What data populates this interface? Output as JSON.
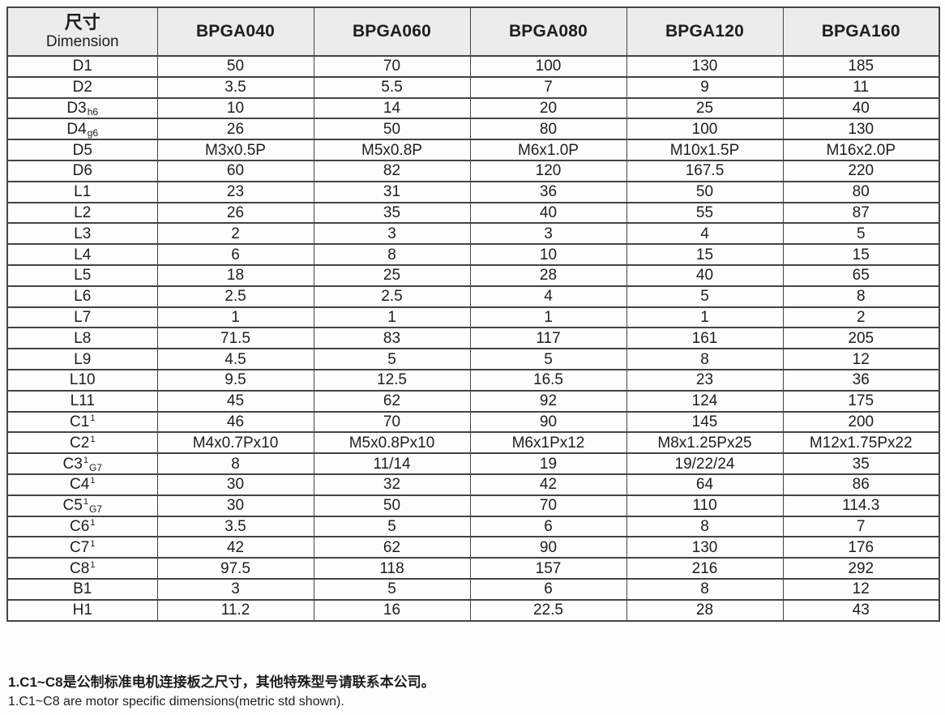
{
  "colors": {
    "line": "#444444",
    "header_bg": "#ececec",
    "text": "#1e1e1e",
    "page_bg": "#fdfdfd"
  },
  "table": {
    "header": {
      "col1_zh": "尺寸",
      "col1_en": "Dimension"
    },
    "columns": [
      "BPGA040",
      "BPGA060",
      "BPGA080",
      "BPGA120",
      "BPGA160"
    ],
    "rows": [
      {
        "label": "D1",
        "values": [
          "50",
          "70",
          "100",
          "130",
          "185"
        ]
      },
      {
        "label": "D2",
        "values": [
          "3.5",
          "5.5",
          "7",
          "9",
          "11"
        ]
      },
      {
        "label": "D3",
        "sub": "h6",
        "values": [
          "10",
          "14",
          "20",
          "25",
          "40"
        ]
      },
      {
        "label": "D4",
        "sub": "g6",
        "values": [
          "26",
          "50",
          "80",
          "100",
          "130"
        ]
      },
      {
        "label": "D5",
        "values": [
          "M3x0.5P",
          "M5x0.8P",
          "M6x1.0P",
          "M10x1.5P",
          "M16x2.0P"
        ]
      },
      {
        "label": "D6",
        "values": [
          "60",
          "82",
          "120",
          "167.5",
          "220"
        ]
      },
      {
        "label": "L1",
        "values": [
          "23",
          "31",
          "36",
          "50",
          "80"
        ]
      },
      {
        "label": "L2",
        "values": [
          "26",
          "35",
          "40",
          "55",
          "87"
        ]
      },
      {
        "label": "L3",
        "values": [
          "2",
          "3",
          "3",
          "4",
          "5"
        ]
      },
      {
        "label": "L4",
        "values": [
          "6",
          "8",
          "10",
          "15",
          "15"
        ]
      },
      {
        "label": "L5",
        "values": [
          "18",
          "25",
          "28",
          "40",
          "65"
        ]
      },
      {
        "label": "L6",
        "values": [
          "2.5",
          "2.5",
          "4",
          "5",
          "8"
        ]
      },
      {
        "label": "L7",
        "values": [
          "1",
          "1",
          "1",
          "1",
          "2"
        ]
      },
      {
        "label": "L8",
        "values": [
          "71.5",
          "83",
          "117",
          "161",
          "205"
        ]
      },
      {
        "label": "L9",
        "values": [
          "4.5",
          "5",
          "5",
          "8",
          "12"
        ]
      },
      {
        "label": "L10",
        "values": [
          "9.5",
          "12.5",
          "16.5",
          "23",
          "36"
        ]
      },
      {
        "label": "L11",
        "values": [
          "45",
          "62",
          "92",
          "124",
          "175"
        ]
      },
      {
        "label": "C1",
        "sup": "1",
        "values": [
          "46",
          "70",
          "90",
          "145",
          "200"
        ]
      },
      {
        "label": "C2",
        "sup": "1",
        "values": [
          "M4x0.7Px10",
          "M5x0.8Px10",
          "M6x1Px12",
          "M8x1.25Px25",
          "M12x1.75Px22"
        ]
      },
      {
        "label": "C3",
        "sup": "1",
        "sub": "G7",
        "values": [
          "8",
          "11/14",
          "19",
          "19/22/24",
          "35"
        ]
      },
      {
        "label": "C4",
        "sup": "1",
        "values": [
          "30",
          "32",
          "42",
          "64",
          "86"
        ]
      },
      {
        "label": "C5",
        "sup": "1",
        "sub": "G7",
        "values": [
          "30",
          "50",
          "70",
          "110",
          "114.3"
        ]
      },
      {
        "label": "C6",
        "sup": "1",
        "values": [
          "3.5",
          "5",
          "6",
          "8",
          "7"
        ]
      },
      {
        "label": "C7",
        "sup": "1",
        "values": [
          "42",
          "62",
          "90",
          "130",
          "176"
        ]
      },
      {
        "label": "C8",
        "sup": "1",
        "values": [
          "97.5",
          "118",
          "157",
          "216",
          "292"
        ]
      },
      {
        "label": "B1",
        "values": [
          "3",
          "5",
          "6",
          "8",
          "12"
        ]
      },
      {
        "label": "H1",
        "values": [
          "11.2",
          "16",
          "22.5",
          "28",
          "43"
        ]
      }
    ]
  },
  "footnotes": [
    "1.C1~C8是公制标准电机连接板之尺寸，其他特殊型号请联系本公司。",
    "1.C1~C8 are motor specific dimensions(metric std shown)."
  ]
}
